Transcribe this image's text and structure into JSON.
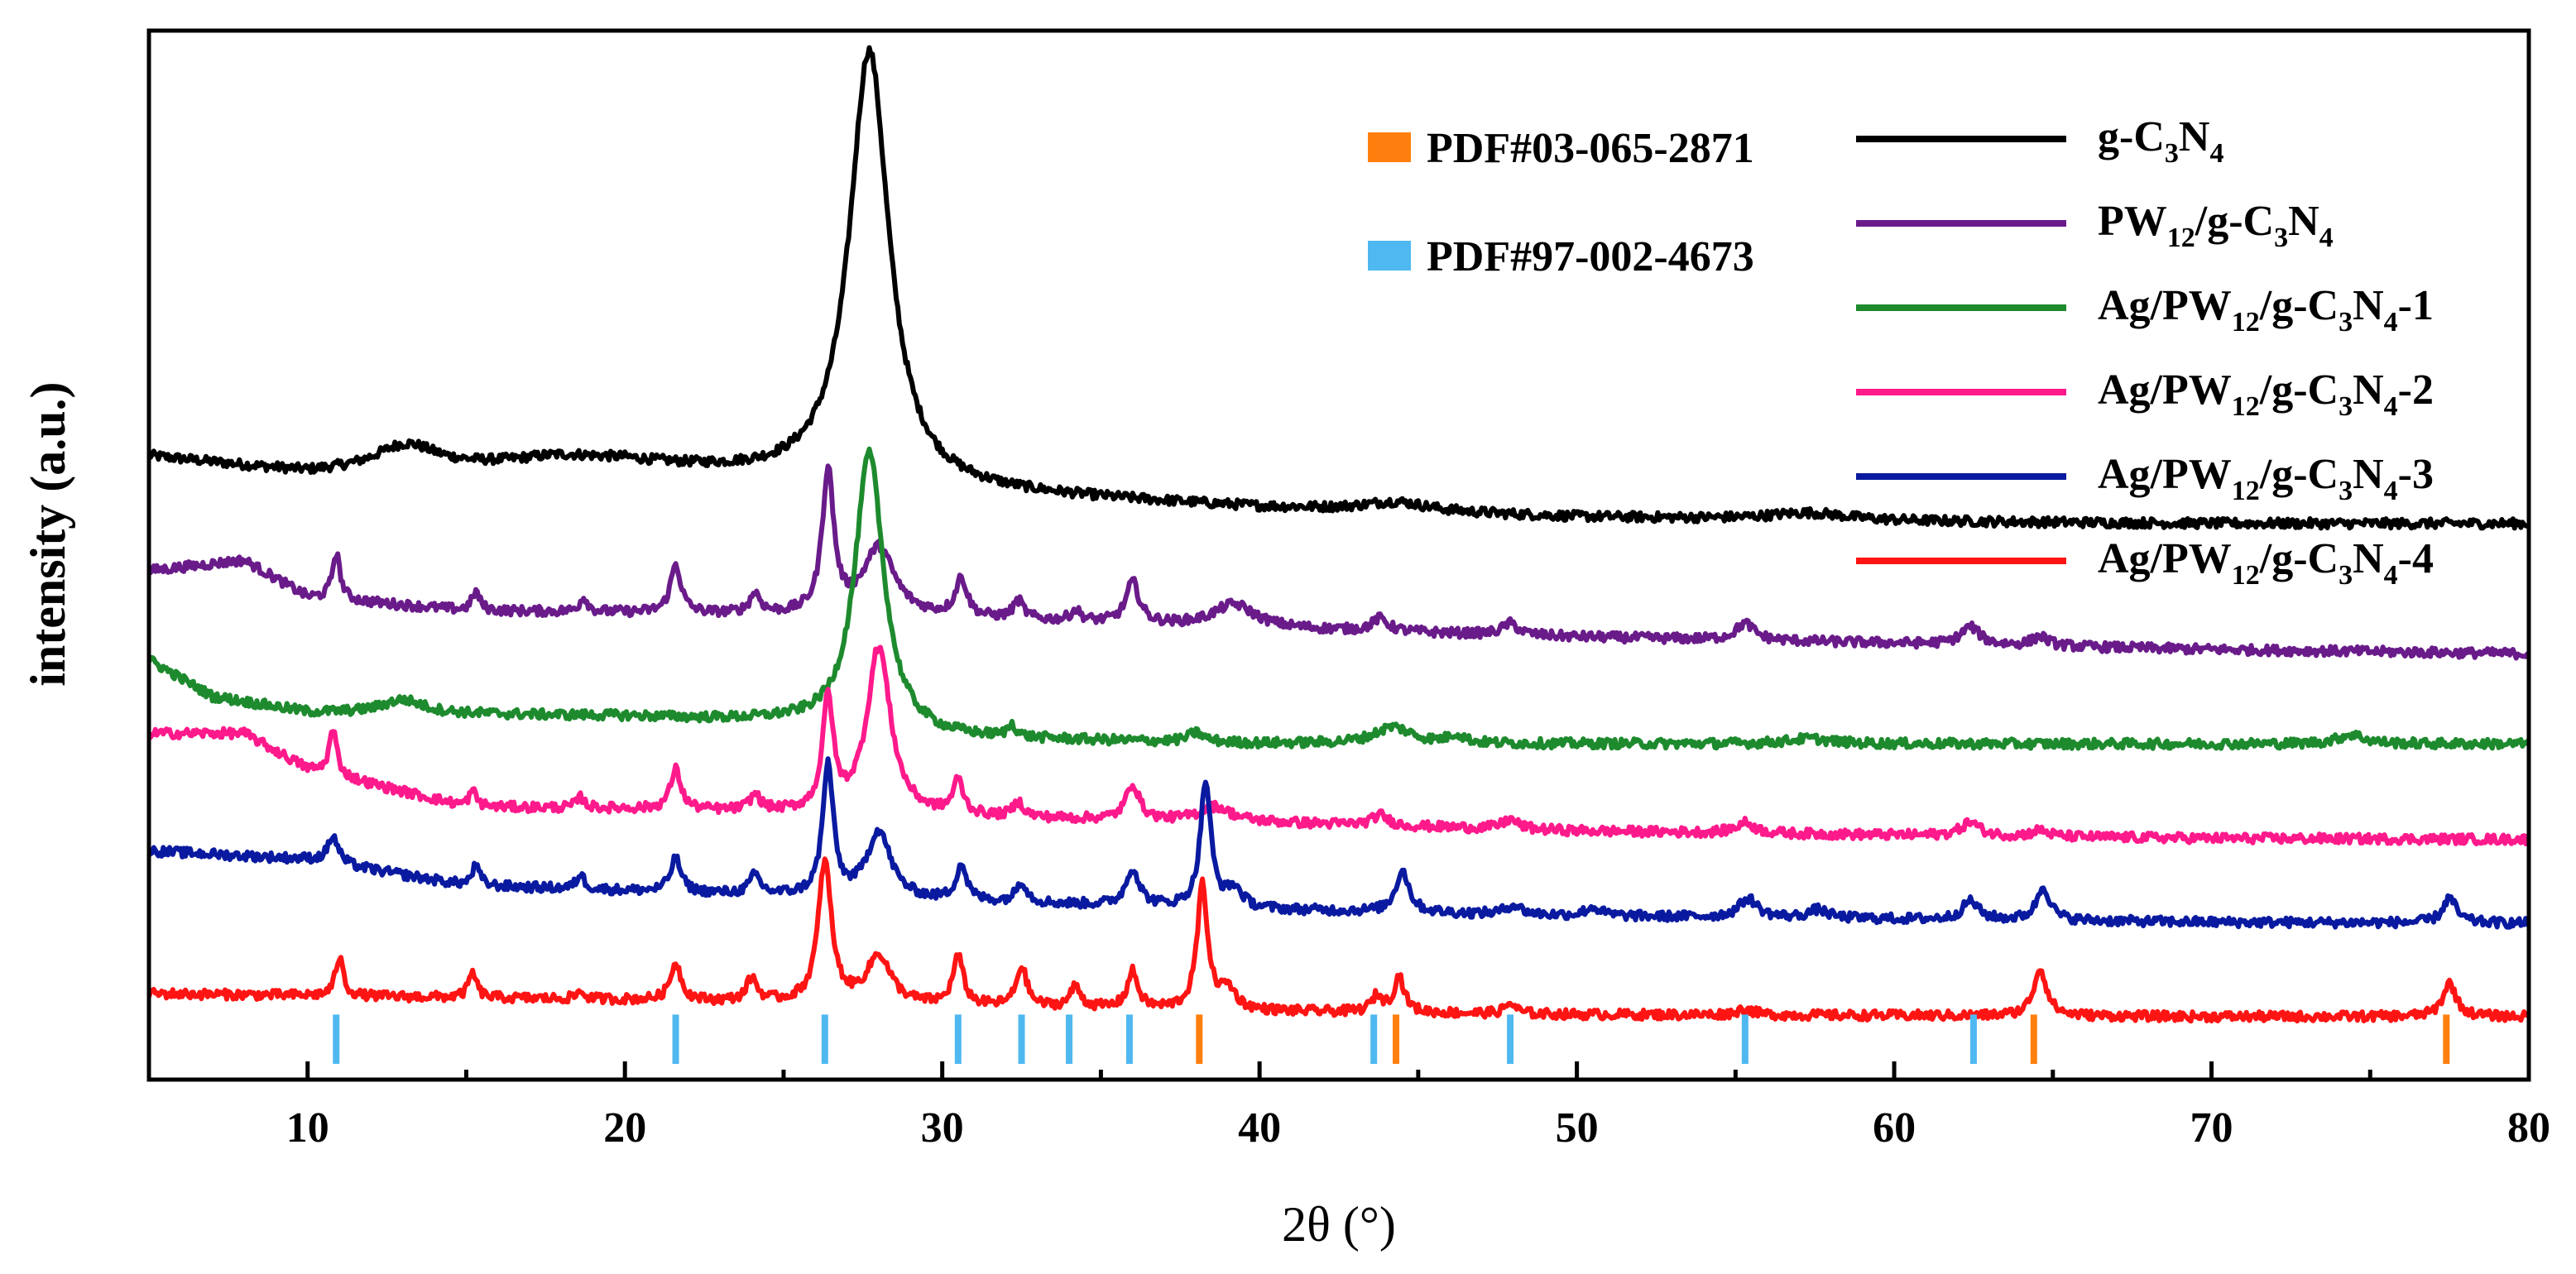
{
  "chart_data": {
    "type": "line",
    "title": "",
    "xlabel": "2θ (°)",
    "ylabel": "intensity (a.u.)",
    "xlim": [
      5,
      80
    ],
    "xticks": [
      10,
      20,
      30,
      40,
      50,
      60,
      70,
      80
    ],
    "xtick_labels": [
      "10",
      "20",
      "30",
      "40",
      "50",
      "60",
      "70",
      "80"
    ],
    "ylim": [
      0,
      100
    ],
    "yticks_shown": false,
    "grid": false,
    "legend_position": "top-right",
    "series": [
      {
        "name": "g-C3N4",
        "label_parts": [
          [
            "g-C",
            ""
          ],
          [
            "3",
            "sub"
          ],
          [
            "N",
            ""
          ],
          [
            "4",
            "sub"
          ]
        ],
        "color": "#000000",
        "baseline": [
          [
            5,
            59.4
          ],
          [
            10,
            57.8
          ],
          [
            20,
            58.6
          ],
          [
            30,
            56.0
          ],
          [
            40,
            54.5
          ],
          [
            50,
            53.6
          ],
          [
            60,
            53.2
          ],
          [
            70,
            53.0
          ],
          [
            80,
            53.0
          ]
        ],
        "peaks": [
          [
            13.1,
            2.4,
            1.2
          ],
          [
            18.0,
            0.8,
            1.8
          ],
          [
            27.7,
            41.5,
            0.75
          ],
          [
            44.3,
            0.9,
            1.2
          ],
          [
            57.3,
            0.7,
            1.5
          ]
        ]
      },
      {
        "name": "PW12/g-C3N4",
        "label_parts": [
          [
            "PW",
            ""
          ],
          [
            "12",
            "sub"
          ],
          [
            "/g-C",
            ""
          ],
          [
            "3",
            "sub"
          ],
          [
            "N",
            ""
          ],
          [
            "4",
            "sub"
          ]
        ],
        "color": "#6a1b8a",
        "baseline": [
          [
            5,
            48.5
          ],
          [
            8,
            49.5
          ],
          [
            10,
            46.0
          ],
          [
            15,
            44.7
          ],
          [
            20,
            44.5
          ],
          [
            30,
            44.0
          ],
          [
            40,
            43.0
          ],
          [
            50,
            42.2
          ],
          [
            60,
            41.6
          ],
          [
            70,
            41.0
          ],
          [
            80,
            40.6
          ]
        ],
        "peaks": [
          [
            10.9,
            4.4,
            0.15
          ],
          [
            15.3,
            1.8,
            0.15
          ],
          [
            18.7,
            1.4,
            0.15
          ],
          [
            21.6,
            4.6,
            0.2
          ],
          [
            24.1,
            1.9,
            0.2
          ],
          [
            26.4,
            13.5,
            0.22
          ],
          [
            28.0,
            6.5,
            0.6
          ],
          [
            30.6,
            3.6,
            0.22
          ],
          [
            32.4,
            1.7,
            0.2
          ],
          [
            34.2,
            1.0,
            0.2
          ],
          [
            36.0,
            3.9,
            0.25
          ],
          [
            39.2,
            2.2,
            0.8
          ],
          [
            43.8,
            1.2,
            0.3
          ],
          [
            47.9,
            1.1,
            0.3
          ],
          [
            55.3,
            1.6,
            0.35
          ],
          [
            62.4,
            1.7,
            0.35
          ],
          [
            64.6,
            0.9,
            0.3
          ]
        ]
      },
      {
        "name": "Ag/PW12/g-C3N4-1",
        "label_parts": [
          [
            "Ag/PW",
            ""
          ],
          [
            "12",
            "sub"
          ],
          [
            "/g-C",
            ""
          ],
          [
            "3",
            "sub"
          ],
          [
            "N",
            ""
          ],
          [
            "4",
            "sub"
          ],
          [
            "-1",
            ""
          ]
        ],
        "color": "#1e8a2e",
        "baseline": [
          [
            5,
            40.0
          ],
          [
            7,
            36.5
          ],
          [
            10,
            35.0
          ],
          [
            15,
            34.8
          ],
          [
            20,
            34.6
          ],
          [
            25,
            34.0
          ],
          [
            30,
            32.5
          ],
          [
            40,
            32.0
          ],
          [
            60,
            32.0
          ],
          [
            80,
            32.0
          ]
        ],
        "peaks": [
          [
            13.0,
            1.3,
            0.8
          ],
          [
            27.7,
            26.5,
            0.55
          ],
          [
            32.2,
            1.2,
            0.15
          ],
          [
            38.0,
            0.9,
            0.3
          ],
          [
            44.2,
            1.6,
            0.7
          ],
          [
            46.2,
            0.8,
            0.3
          ],
          [
            57.3,
            0.5,
            0.8
          ],
          [
            74.4,
            0.9,
            0.5
          ]
        ]
      },
      {
        "name": "Ag/PW12/g-C3N4-2",
        "label_parts": [
          [
            "Ag/PW",
            ""
          ],
          [
            "12",
            "sub"
          ],
          [
            "/g-C",
            ""
          ],
          [
            "3",
            "sub"
          ],
          [
            "N",
            ""
          ],
          [
            "4",
            "sub"
          ],
          [
            "-2",
            ""
          ]
        ],
        "color": "#ff1a8c",
        "baseline": [
          [
            5,
            33.0
          ],
          [
            8,
            33.0
          ],
          [
            10,
            29.6
          ],
          [
            15,
            26.0
          ],
          [
            20,
            25.8
          ],
          [
            30,
            25.0
          ],
          [
            40,
            24.5
          ],
          [
            50,
            23.7
          ],
          [
            60,
            23.3
          ],
          [
            70,
            23.0
          ],
          [
            80,
            22.9
          ]
        ],
        "peaks": [
          [
            10.8,
            4.3,
            0.15
          ],
          [
            15.2,
            1.5,
            0.15
          ],
          [
            18.6,
            1.0,
            0.15
          ],
          [
            21.6,
            3.8,
            0.2
          ],
          [
            24.1,
            1.5,
            0.2
          ],
          [
            26.4,
            10.6,
            0.2
          ],
          [
            28.0,
            16.0,
            0.45
          ],
          [
            30.5,
            3.2,
            0.2
          ],
          [
            32.4,
            1.4,
            0.2
          ],
          [
            36.0,
            3.4,
            0.25
          ],
          [
            38.6,
            1.4,
            0.6
          ],
          [
            43.8,
            1.0,
            0.3
          ],
          [
            47.9,
            0.9,
            0.3
          ],
          [
            55.3,
            1.0,
            0.35
          ],
          [
            62.4,
            1.3,
            0.35
          ],
          [
            64.6,
            0.6,
            0.3
          ]
        ]
      },
      {
        "name": "Ag/PW12/g-C3N4-3",
        "label_parts": [
          [
            "Ag/PW",
            ""
          ],
          [
            "12",
            "sub"
          ],
          [
            "/g-C",
            ""
          ],
          [
            "3",
            "sub"
          ],
          [
            "N",
            ""
          ],
          [
            "4",
            "sub"
          ],
          [
            "-3",
            ""
          ]
        ],
        "color": "#0a1aa0",
        "baseline": [
          [
            5,
            21.8
          ],
          [
            10,
            21.0
          ],
          [
            15,
            18.5
          ],
          [
            20,
            18.0
          ],
          [
            30,
            17.0
          ],
          [
            40,
            16.2
          ],
          [
            50,
            15.6
          ],
          [
            60,
            15.3
          ],
          [
            70,
            15.0
          ],
          [
            80,
            14.9
          ]
        ],
        "peaks": [
          [
            10.8,
            2.6,
            0.2
          ],
          [
            15.3,
            1.9,
            0.15
          ],
          [
            18.6,
            1.4,
            0.15
          ],
          [
            21.6,
            3.2,
            0.2
          ],
          [
            24.1,
            1.8,
            0.2
          ],
          [
            26.4,
            12.5,
            0.2
          ],
          [
            28.0,
            6.4,
            0.45
          ],
          [
            30.6,
            3.4,
            0.2
          ],
          [
            32.5,
            2.0,
            0.2
          ],
          [
            36.0,
            3.5,
            0.25
          ],
          [
            38.3,
            12.0,
            0.2
          ],
          [
            39.2,
            1.8,
            0.3
          ],
          [
            44.5,
            4.0,
            0.25
          ],
          [
            48.0,
            0.9,
            0.3
          ],
          [
            50.5,
            0.8,
            0.3
          ],
          [
            55.4,
            1.8,
            0.35
          ],
          [
            57.6,
            0.8,
            0.35
          ],
          [
            62.4,
            1.8,
            0.3
          ],
          [
            64.7,
            3.2,
            0.25
          ],
          [
            77.5,
            2.4,
            0.25
          ]
        ]
      },
      {
        "name": "Ag/PW12/g-C3N4-4",
        "label_parts": [
          [
            "Ag/PW",
            ""
          ],
          [
            "12",
            "sub"
          ],
          [
            "/g-C",
            ""
          ],
          [
            "3",
            "sub"
          ],
          [
            "N",
            ""
          ],
          [
            "4",
            "sub"
          ],
          [
            "-4",
            ""
          ]
        ],
        "color": "#ff1414",
        "baseline": [
          [
            5,
            8.2
          ],
          [
            10,
            8.0
          ],
          [
            20,
            7.6
          ],
          [
            30,
            7.0
          ],
          [
            40,
            6.5
          ],
          [
            50,
            6.2
          ],
          [
            60,
            6.1
          ],
          [
            70,
            6.0
          ],
          [
            80,
            6.0
          ]
        ],
        "peaks": [
          [
            11.0,
            3.7,
            0.15
          ],
          [
            15.2,
            2.4,
            0.15
          ],
          [
            18.6,
            0.7,
            0.15
          ],
          [
            21.6,
            3.6,
            0.2
          ],
          [
            24.0,
            2.2,
            0.2
          ],
          [
            26.3,
            13.4,
            0.25
          ],
          [
            28.0,
            4.6,
            0.45
          ],
          [
            30.5,
            4.6,
            0.2
          ],
          [
            32.5,
            3.8,
            0.2
          ],
          [
            34.2,
            2.0,
            0.2
          ],
          [
            36.0,
            3.5,
            0.2
          ],
          [
            38.2,
            11.8,
            0.2
          ],
          [
            39.0,
            2.0,
            0.3
          ],
          [
            43.7,
            1.5,
            0.2
          ],
          [
            44.4,
            3.4,
            0.2
          ],
          [
            47.9,
            1.0,
            0.2
          ],
          [
            55.3,
            0.6,
            0.3
          ],
          [
            64.6,
            4.5,
            0.25
          ],
          [
            77.5,
            3.2,
            0.25
          ]
        ]
      }
    ],
    "references": [
      {
        "name": "PDF#03-065-2871",
        "color": "#ff7f0e",
        "positions": [
          38.1,
          44.3,
          64.4,
          77.4
        ]
      },
      {
        "name": "PDF#97-002-4673",
        "color": "#4fb8f0",
        "positions": [
          10.9,
          21.6,
          26.3,
          30.5,
          32.5,
          34.0,
          35.9,
          43.6,
          47.9,
          55.3,
          62.5
        ]
      }
    ]
  }
}
